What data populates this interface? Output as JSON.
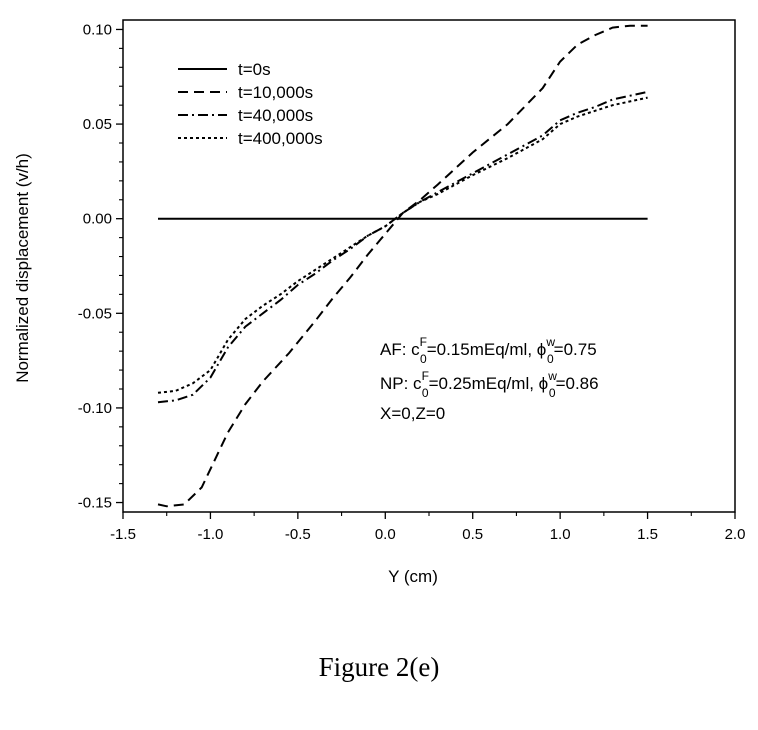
{
  "chart_data": {
    "type": "line",
    "title": "",
    "xlabel": "Y (cm)",
    "ylabel": "Normalized displacement (v/h)",
    "xlim": [
      -1.5,
      2.0
    ],
    "ylim": [
      -0.155,
      0.105
    ],
    "xticks": [
      -1.5,
      -1.0,
      -0.5,
      0.0,
      0.5,
      1.0,
      1.5,
      2.0
    ],
    "xtick_labels": [
      "-1.5",
      "-1.0",
      "-0.5",
      "0.0",
      "0.5",
      "1.0",
      "1.5",
      "2.0"
    ],
    "yticks": [
      -0.15,
      -0.1,
      -0.05,
      0.0,
      0.05,
      0.1
    ],
    "ytick_labels": [
      "-0.15",
      "-0.10",
      "-0.05",
      "0.00",
      "0.05",
      "0.10"
    ],
    "grid": false,
    "legend_position": "top-left",
    "series": [
      {
        "name": "t=0s",
        "style": "solid",
        "x": [
          -1.3,
          1.5
        ],
        "y": [
          0.0,
          0.0
        ]
      },
      {
        "name": "t=10,000s",
        "style": "dashed",
        "x": [
          -1.3,
          -1.25,
          -1.15,
          -1.05,
          -0.9,
          -0.8,
          -0.7,
          -0.55,
          -0.4,
          -0.3,
          -0.2,
          -0.1,
          0.0,
          0.1,
          0.2,
          0.3,
          0.5,
          0.7,
          0.9,
          1.0,
          1.1,
          1.2,
          1.3,
          1.4,
          1.5
        ],
        "y": [
          -0.151,
          -0.152,
          -0.151,
          -0.142,
          -0.113,
          -0.098,
          -0.086,
          -0.071,
          -0.054,
          -0.042,
          -0.031,
          -0.019,
          -0.008,
          0.003,
          0.01,
          0.018,
          0.035,
          0.05,
          0.069,
          0.083,
          0.092,
          0.097,
          0.101,
          0.102,
          0.102
        ]
      },
      {
        "name": "t=40,000s",
        "style": "dashdot",
        "x": [
          -1.3,
          -1.2,
          -1.1,
          -1.0,
          -0.9,
          -0.8,
          -0.7,
          -0.6,
          -0.5,
          -0.4,
          -0.3,
          -0.2,
          -0.1,
          0.0,
          0.1,
          0.2,
          0.3,
          0.5,
          0.7,
          0.9,
          1.0,
          1.1,
          1.2,
          1.3,
          1.4,
          1.5
        ],
        "y": [
          -0.097,
          -0.096,
          -0.093,
          -0.084,
          -0.068,
          -0.057,
          -0.05,
          -0.043,
          -0.035,
          -0.029,
          -0.022,
          -0.016,
          -0.009,
          -0.004,
          0.003,
          0.009,
          0.014,
          0.024,
          0.034,
          0.044,
          0.052,
          0.056,
          0.059,
          0.063,
          0.065,
          0.067
        ]
      },
      {
        "name": "t=400,000s",
        "style": "dotted",
        "x": [
          -1.3,
          -1.2,
          -1.1,
          -1.0,
          -0.9,
          -0.8,
          -0.7,
          -0.6,
          -0.5,
          -0.4,
          -0.3,
          -0.2,
          -0.1,
          0.0,
          0.1,
          0.2,
          0.3,
          0.5,
          0.7,
          0.9,
          1.0,
          1.1,
          1.2,
          1.3,
          1.4,
          1.5
        ],
        "y": [
          -0.092,
          -0.091,
          -0.087,
          -0.08,
          -0.064,
          -0.053,
          -0.046,
          -0.04,
          -0.033,
          -0.027,
          -0.021,
          -0.015,
          -0.009,
          -0.004,
          0.003,
          0.009,
          0.013,
          0.023,
          0.032,
          0.042,
          0.05,
          0.054,
          0.057,
          0.06,
          0.062,
          0.064
        ]
      }
    ],
    "annotations": [
      {
        "prefix": "AF: c",
        "sup": "F",
        "sub": "0",
        "mid": "=0.15mEq/ml, ϕ",
        "sup2": "w",
        "sub2": "0",
        "suffix": "=0.75"
      },
      {
        "prefix": "NP: c",
        "sup": "F",
        "sub": "0",
        "mid": "=0.25mEq/ml, ϕ",
        "sup2": "w",
        "sub2": "0",
        "suffix": "=0.86"
      },
      {
        "text": "X=0,Z=0"
      }
    ]
  },
  "caption": "Figure 2(e)"
}
